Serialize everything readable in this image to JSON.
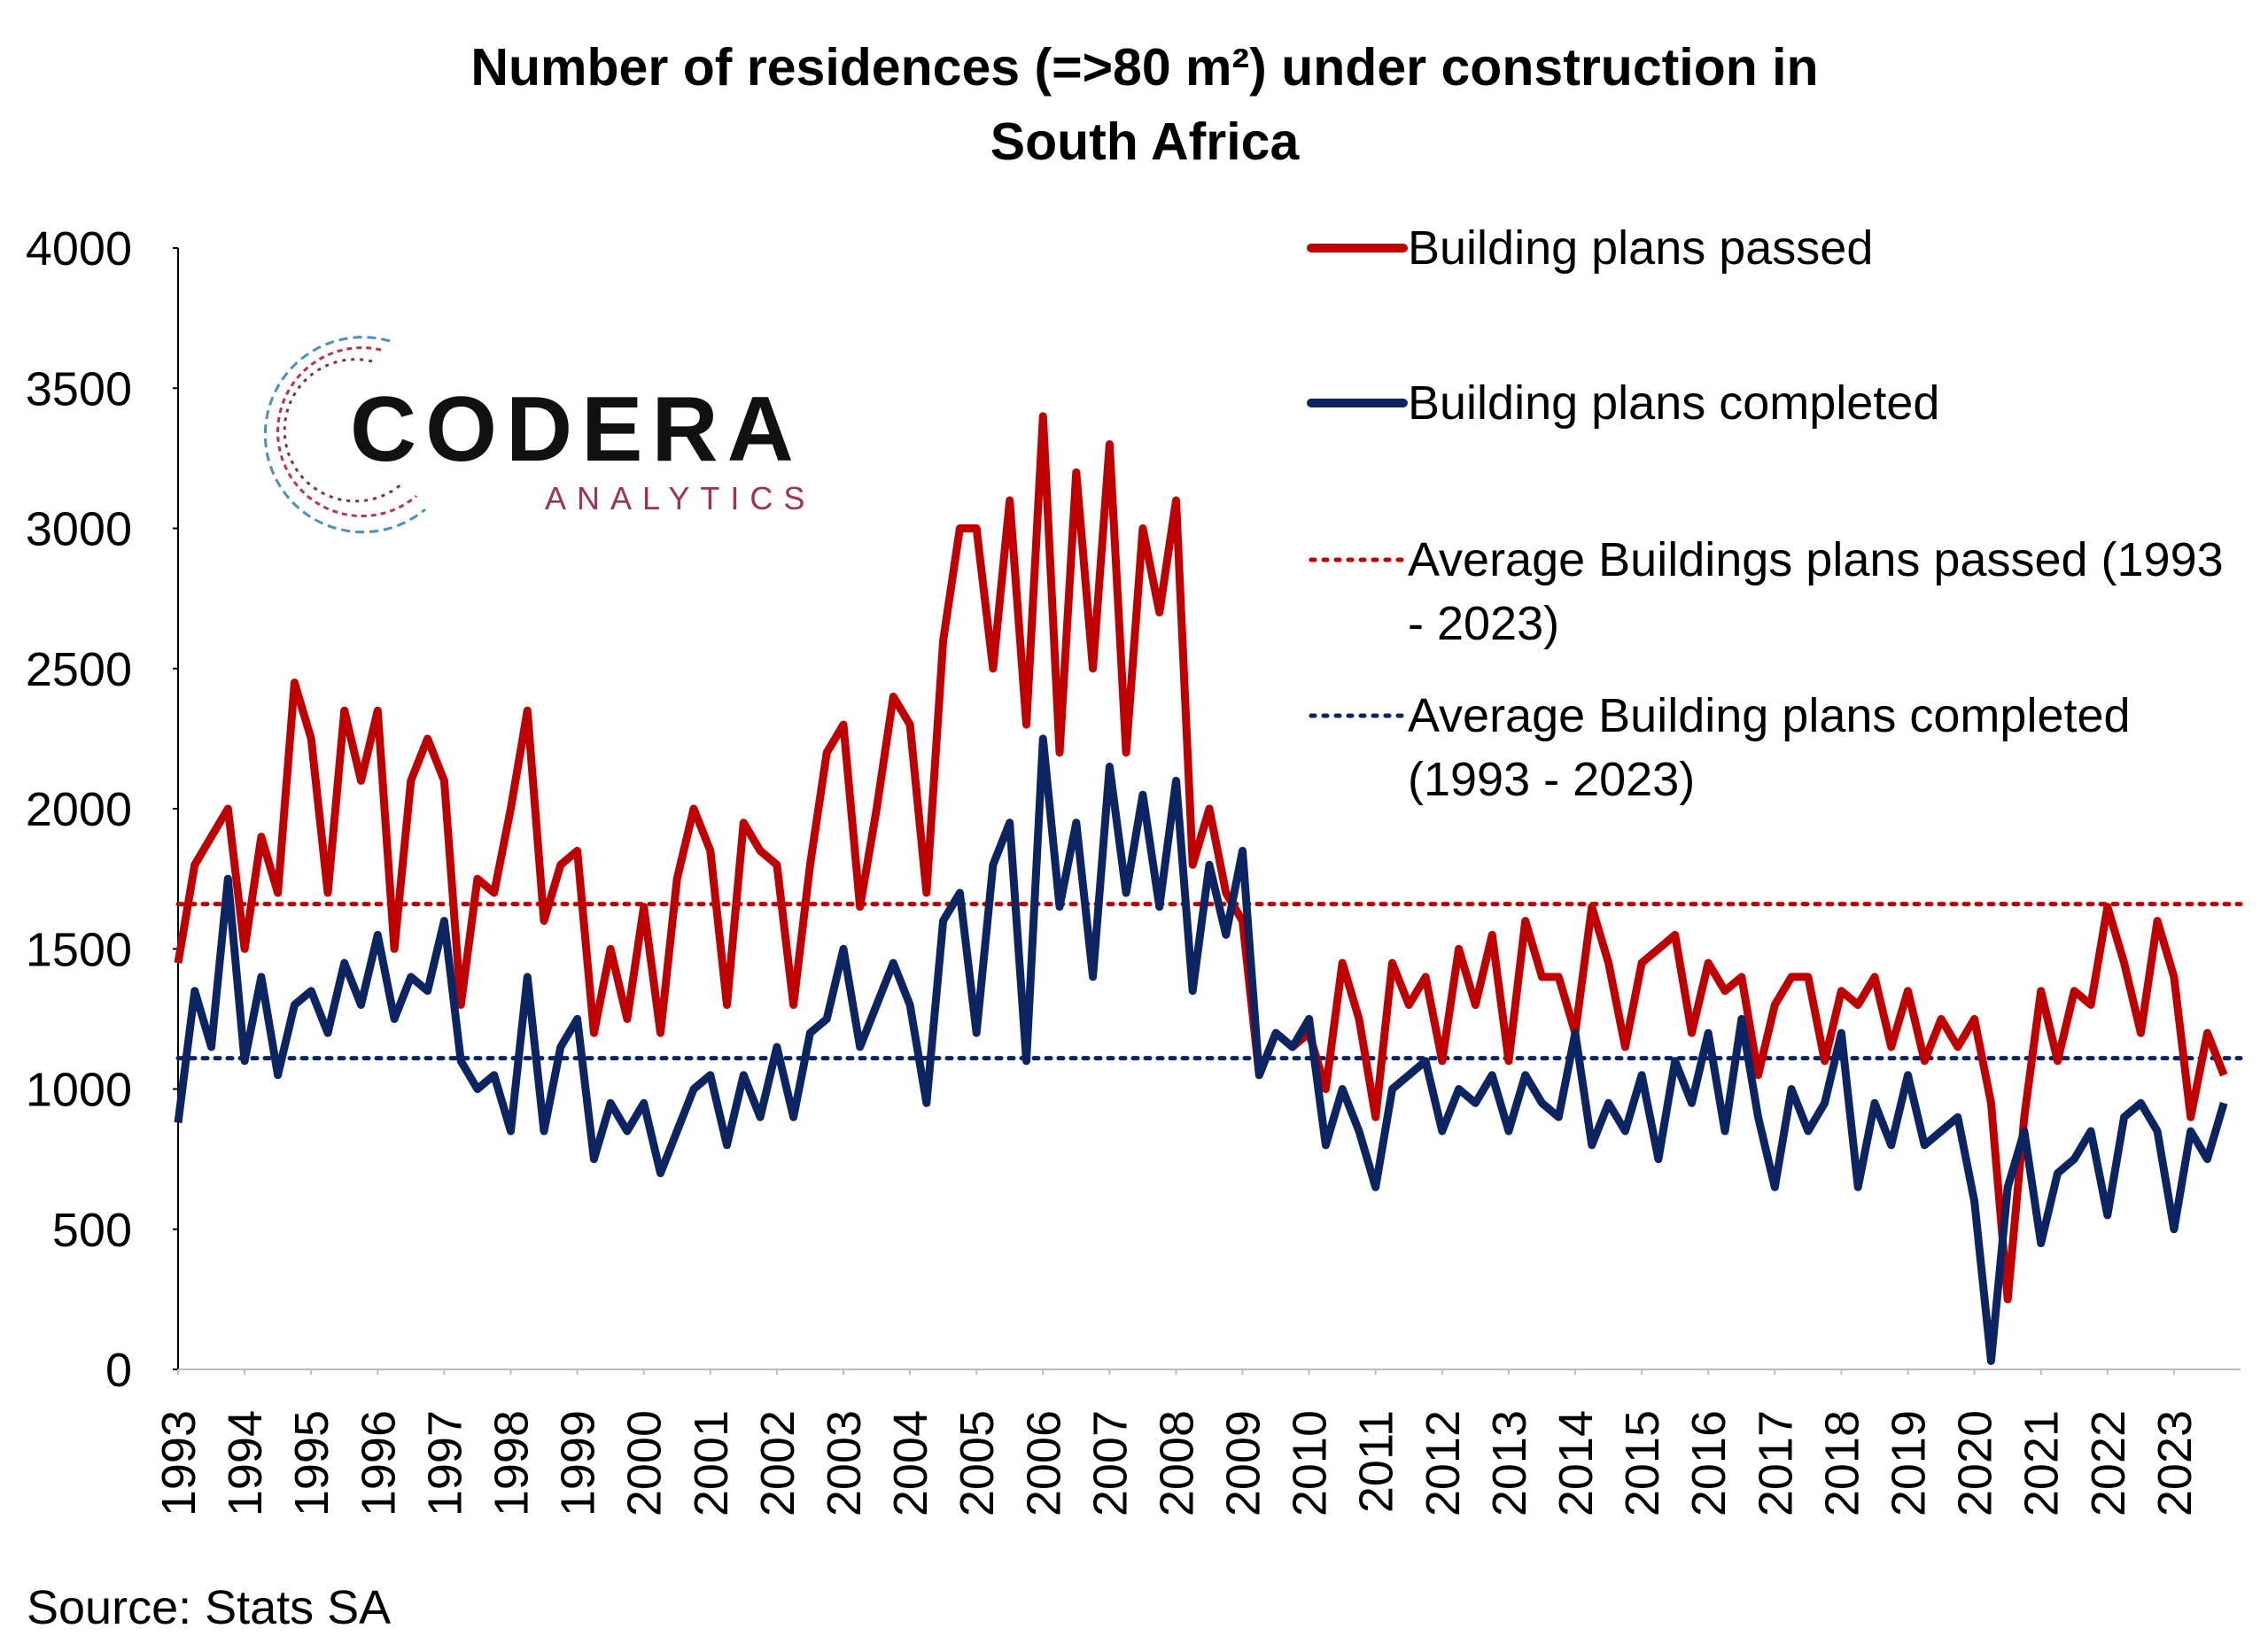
{
  "chart_data": {
    "type": "line",
    "title": [
      "Number of residences (=>80 m²) under construction in",
      "South Africa"
    ],
    "source": "Source: Stats SA",
    "logo": {
      "name": "CODERA",
      "sub": "ANALYTICS"
    },
    "x": [
      1993,
      1993.25,
      1993.5,
      1993.75,
      1994,
      1994.25,
      1994.5,
      1994.75,
      1995,
      1995.25,
      1995.5,
      1995.75,
      1996,
      1996.25,
      1996.5,
      1996.75,
      1997,
      1997.25,
      1997.5,
      1997.75,
      1998,
      1998.25,
      1998.5,
      1998.75,
      1999,
      1999.25,
      1999.5,
      1999.75,
      2000,
      2000.25,
      2000.5,
      2000.75,
      2001,
      2001.25,
      2001.5,
      2001.75,
      2002,
      2002.25,
      2002.5,
      2002.75,
      2003,
      2003.25,
      2003.5,
      2003.75,
      2004,
      2004.25,
      2004.5,
      2004.75,
      2005,
      2005.25,
      2005.5,
      2005.75,
      2006,
      2006.25,
      2006.5,
      2006.75,
      2007,
      2007.25,
      2007.5,
      2007.75,
      2008,
      2008.25,
      2008.5,
      2008.75,
      2009,
      2009.25,
      2009.5,
      2009.75,
      2010,
      2010.25,
      2010.5,
      2010.75,
      2011,
      2011.25,
      2011.5,
      2011.75,
      2012,
      2012.25,
      2012.5,
      2012.75,
      2013,
      2013.25,
      2013.5,
      2013.75,
      2014,
      2014.25,
      2014.5,
      2014.75,
      2015,
      2015.25,
      2015.5,
      2015.75,
      2016,
      2016.25,
      2016.5,
      2016.75,
      2017,
      2017.25,
      2017.5,
      2017.75,
      2018,
      2018.25,
      2018.5,
      2018.75,
      2019,
      2019.25,
      2019.5,
      2019.75,
      2020,
      2020.25,
      2020.5,
      2020.75,
      2021,
      2021.25,
      2021.5,
      2021.75,
      2022,
      2022.25,
      2022.5,
      2022.75,
      2023,
      2023.25,
      2023.5,
      2023.75
    ],
    "series": [
      {
        "name": "Building plans passed",
        "color": "#c00000",
        "values": [
          1450,
          1800,
          1900,
          2000,
          1500,
          1900,
          1700,
          2450,
          2250,
          1700,
          2350,
          2100,
          2350,
          1500,
          2100,
          2250,
          2100,
          1300,
          1750,
          1700,
          2000,
          2350,
          1600,
          1800,
          1850,
          1200,
          1500,
          1250,
          1650,
          1200,
          1750,
          2000,
          1850,
          1300,
          1950,
          1850,
          1800,
          1300,
          1800,
          2200,
          2300,
          1650,
          2000,
          2400,
          2300,
          1700,
          2600,
          3000,
          3000,
          2500,
          3100,
          2300,
          3400,
          2200,
          3200,
          2500,
          3300,
          2200,
          3000,
          2700,
          3100,
          1800,
          2000,
          1700,
          1600,
          1050,
          1200,
          1150,
          1200,
          1000,
          1450,
          1250,
          900,
          1450,
          1300,
          1400,
          1100,
          1500,
          1300,
          1550,
          1100,
          1600,
          1400,
          1400,
          1200,
          1650,
          1450,
          1150,
          1450,
          1500,
          1550,
          1200,
          1450,
          1350,
          1400,
          1050,
          1300,
          1400,
          1400,
          1100,
          1350,
          1300,
          1400,
          1150,
          1350,
          1100,
          1250,
          1150,
          1250,
          950,
          250,
          900,
          1350,
          1100,
          1350,
          1300,
          1650,
          1450,
          1200,
          1600,
          1400,
          900,
          1200,
          1050
        ]
      },
      {
        "name": "Building plans completed",
        "color": "#0d2463",
        "values": [
          880,
          1350,
          1150,
          1750,
          1100,
          1400,
          1050,
          1300,
          1350,
          1200,
          1450,
          1300,
          1550,
          1250,
          1400,
          1350,
          1600,
          1100,
          1000,
          1050,
          850,
          1400,
          850,
          1150,
          1250,
          750,
          950,
          850,
          950,
          700,
          850,
          1000,
          1050,
          800,
          1050,
          900,
          1150,
          900,
          1200,
          1250,
          1500,
          1150,
          1300,
          1450,
          1300,
          950,
          1600,
          1700,
          1200,
          1800,
          1950,
          1100,
          2250,
          1650,
          1950,
          1400,
          2150,
          1700,
          2050,
          1650,
          2100,
          1350,
          1800,
          1550,
          1850,
          1050,
          1200,
          1150,
          1250,
          800,
          1000,
          850,
          650,
          1000,
          1050,
          1100,
          850,
          1000,
          950,
          1050,
          850,
          1050,
          950,
          900,
          1200,
          800,
          950,
          850,
          1050,
          750,
          1100,
          950,
          1200,
          850,
          1250,
          900,
          650,
          1000,
          850,
          950,
          1200,
          650,
          950,
          800,
          1050,
          800,
          850,
          900,
          600,
          30,
          650,
          850,
          450,
          700,
          750,
          850,
          550,
          900,
          950,
          850,
          500,
          850,
          750,
          950
        ]
      }
    ],
    "average_lines": [
      {
        "name": "Average Buildings plans passed (1993 - 2023)",
        "color": "#c00000",
        "value": 1660
      },
      {
        "name": "Average Building plans completed (1993 - 2023)",
        "color": "#0d2463",
        "value": 1110
      }
    ],
    "xlim": [
      1993,
      2024
    ],
    "xticks": [
      1993,
      1994,
      1995,
      1996,
      1997,
      1998,
      1999,
      2000,
      2001,
      2002,
      2003,
      2004,
      2005,
      2006,
      2007,
      2008,
      2009,
      2010,
      2011,
      2012,
      2013,
      2014,
      2015,
      2016,
      2017,
      2018,
      2019,
      2020,
      2021,
      2022,
      2023
    ],
    "ylim": [
      0,
      4000
    ],
    "yticks": [
      0,
      500,
      1000,
      1500,
      2000,
      2500,
      3000,
      3500,
      4000
    ],
    "grid": false
  }
}
